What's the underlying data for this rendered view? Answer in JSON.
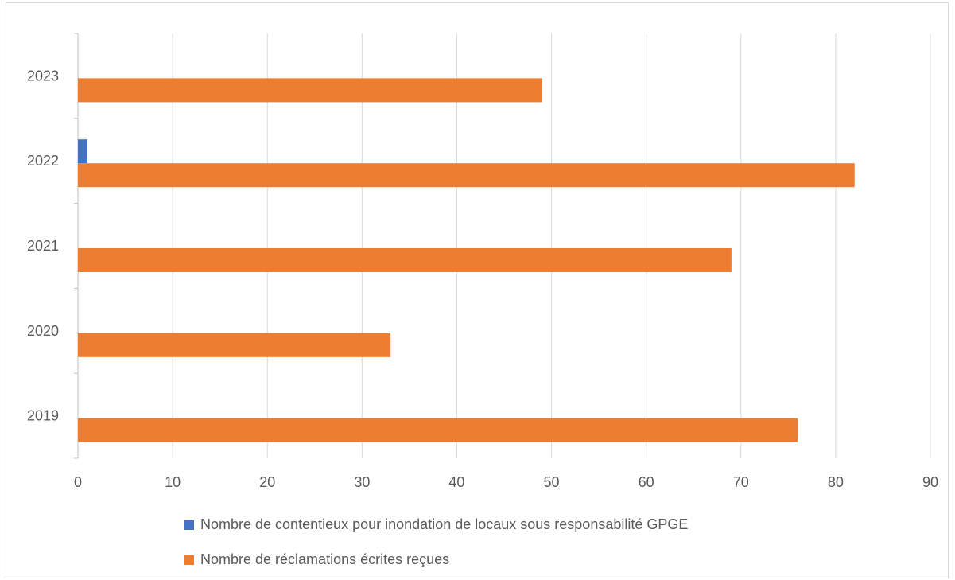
{
  "chart_data": {
    "type": "bar",
    "orientation": "horizontal",
    "categories": [
      "2019",
      "2020",
      "2021",
      "2022",
      "2023"
    ],
    "series": [
      {
        "name": "Nombre de contentieux pour inondation de locaux sous responsabilité GPGE",
        "color": "#4472c4",
        "values": [
          0,
          0,
          0,
          1,
          0
        ]
      },
      {
        "name": "Nombre de réclamations écrites reçues",
        "color": "#ed7d31",
        "values": [
          76,
          33,
          69,
          82,
          49
        ]
      }
    ],
    "x_ticks": [
      "0",
      "10",
      "20",
      "30",
      "40",
      "50",
      "60",
      "70",
      "80",
      "90"
    ],
    "xlim": [
      0,
      90
    ],
    "grid": true,
    "legend_position": "bottom"
  }
}
